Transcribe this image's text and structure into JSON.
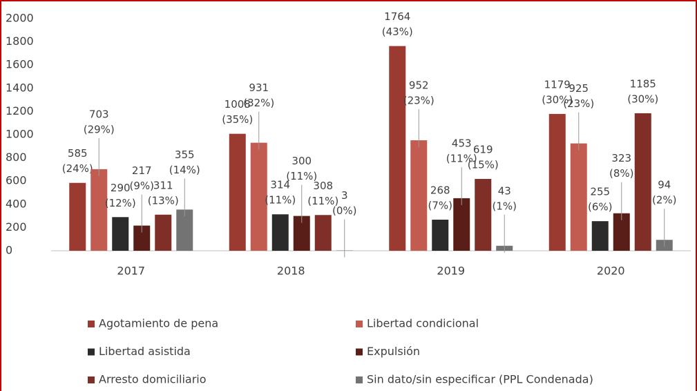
{
  "chart_data": {
    "type": "bar",
    "categories": [
      "2017",
      "2018",
      "2019",
      "2020"
    ],
    "ylim": [
      0,
      2000
    ],
    "yticks": [
      0,
      200,
      400,
      600,
      800,
      1000,
      1200,
      1400,
      1600,
      1800,
      2000
    ],
    "grid": false,
    "legend": "bottom",
    "series": [
      {
        "name": "Agotamiento de pena",
        "color": "#9b3a30",
        "values": [
          585,
          1008,
          1764,
          1179
        ],
        "percent_labels": [
          "(24%)",
          "(35%)",
          "(43%)",
          "(30%)"
        ]
      },
      {
        "name": "Libertad condicional",
        "color": "#c35c50",
        "values": [
          703,
          931,
          952,
          925
        ],
        "percent_labels": [
          "(29%)",
          "(32%)",
          "(23%)",
          "(23%)"
        ]
      },
      {
        "name": "Libertad asistida",
        "color": "#2b2b2b",
        "values": [
          290,
          314,
          268,
          255
        ],
        "percent_labels": [
          "(12%)",
          "(11%)",
          "(7%)",
          "(6%)"
        ]
      },
      {
        "name": "Expulsión",
        "color": "#5a1e18",
        "values": [
          217,
          300,
          453,
          323
        ],
        "percent_labels": [
          "(9%)",
          "(11%)",
          "(11%)",
          "(8%)"
        ]
      },
      {
        "name": "Arresto domiciliario",
        "color": "#7f2f28",
        "values": [
          311,
          308,
          619,
          1185
        ],
        "percent_labels": [
          "(13%)",
          "(11%)",
          "(15%)",
          "(30%)"
        ]
      },
      {
        "name": "Sin dato/sin especificar (PPL Condenada)",
        "color": "#737373",
        "values": [
          355,
          3,
          43,
          94
        ],
        "percent_labels": [
          "(14%)",
          "(0%)",
          "(1%)",
          "(2%)"
        ]
      }
    ]
  }
}
